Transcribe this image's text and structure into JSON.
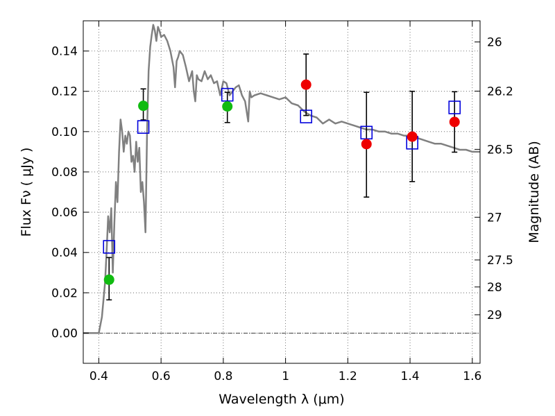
{
  "chart_data": {
    "type": "scatter",
    "xlabel": "Wavelength  λ (μm)",
    "ylabel": "Flux  Fν  ( μJy )",
    "right_ylabel": "Magnitude (AB)",
    "xlim": [
      0.35,
      1.625
    ],
    "ylim": [
      -0.015,
      0.155
    ],
    "grid": true,
    "x_ticks": [
      {
        "value": 0.4,
        "label": "0.4"
      },
      {
        "value": 0.6,
        "label": "0.6"
      },
      {
        "value": 0.8,
        "label": "0.8"
      },
      {
        "value": 1.0,
        "label": "1"
      },
      {
        "value": 1.2,
        "label": "1.2"
      },
      {
        "value": 1.4,
        "label": "1.4"
      },
      {
        "value": 1.6,
        "label": "1.6"
      }
    ],
    "y_ticks": [
      {
        "value": 0.0,
        "label": "0.00"
      },
      {
        "value": 0.02,
        "label": "0.02"
      },
      {
        "value": 0.04,
        "label": "0.04"
      },
      {
        "value": 0.06,
        "label": "0.06"
      },
      {
        "value": 0.08,
        "label": "0.08"
      },
      {
        "value": 0.1,
        "label": "0.10"
      },
      {
        "value": 0.12,
        "label": "0.12"
      },
      {
        "value": 0.14,
        "label": "0.14"
      }
    ],
    "right_ticks": [
      {
        "flux": 0.1445,
        "label": "26"
      },
      {
        "flux": 0.1201,
        "label": "26.2"
      },
      {
        "flux": 0.0912,
        "label": "26.5"
      },
      {
        "flux": 0.0575,
        "label": "27"
      },
      {
        "flux": 0.0363,
        "label": "27.5"
      },
      {
        "flux": 0.0229,
        "label": "28"
      },
      {
        "flux": 0.0091,
        "label": "29"
      }
    ],
    "colors": {
      "model": "#808080",
      "green": "#11bb11",
      "red": "#ee0000",
      "box": "#0000dd",
      "errorbar": "#000000"
    },
    "model_spectrum": [
      [
        0.35,
        0.0
      ],
      [
        0.4,
        0.0
      ],
      [
        0.41,
        0.008
      ],
      [
        0.42,
        0.025
      ],
      [
        0.425,
        0.04
      ],
      [
        0.43,
        0.058
      ],
      [
        0.435,
        0.05
      ],
      [
        0.44,
        0.062
      ],
      [
        0.445,
        0.03
      ],
      [
        0.45,
        0.055
      ],
      [
        0.455,
        0.075
      ],
      [
        0.46,
        0.065
      ],
      [
        0.465,
        0.09
      ],
      [
        0.47,
        0.106
      ],
      [
        0.475,
        0.1
      ],
      [
        0.48,
        0.09
      ],
      [
        0.485,
        0.098
      ],
      [
        0.49,
        0.094
      ],
      [
        0.495,
        0.1
      ],
      [
        0.5,
        0.098
      ],
      [
        0.505,
        0.085
      ],
      [
        0.51,
        0.088
      ],
      [
        0.515,
        0.08
      ],
      [
        0.52,
        0.095
      ],
      [
        0.525,
        0.085
      ],
      [
        0.53,
        0.092
      ],
      [
        0.535,
        0.07
      ],
      [
        0.54,
        0.075
      ],
      [
        0.545,
        0.065
      ],
      [
        0.55,
        0.05
      ],
      [
        0.555,
        0.1
      ],
      [
        0.56,
        0.13
      ],
      [
        0.565,
        0.142
      ],
      [
        0.57,
        0.148
      ],
      [
        0.575,
        0.153
      ],
      [
        0.58,
        0.15
      ],
      [
        0.585,
        0.145
      ],
      [
        0.59,
        0.152
      ],
      [
        0.595,
        0.15
      ],
      [
        0.6,
        0.147
      ],
      [
        0.61,
        0.148
      ],
      [
        0.62,
        0.145
      ],
      [
        0.63,
        0.14
      ],
      [
        0.64,
        0.132
      ],
      [
        0.645,
        0.122
      ],
      [
        0.65,
        0.135
      ],
      [
        0.655,
        0.137
      ],
      [
        0.66,
        0.14
      ],
      [
        0.67,
        0.138
      ],
      [
        0.68,
        0.132
      ],
      [
        0.69,
        0.125
      ],
      [
        0.7,
        0.13
      ],
      [
        0.705,
        0.12
      ],
      [
        0.71,
        0.115
      ],
      [
        0.715,
        0.128
      ],
      [
        0.72,
        0.126
      ],
      [
        0.73,
        0.125
      ],
      [
        0.74,
        0.13
      ],
      [
        0.75,
        0.126
      ],
      [
        0.76,
        0.128
      ],
      [
        0.77,
        0.124
      ],
      [
        0.78,
        0.125
      ],
      [
        0.79,
        0.118
      ],
      [
        0.8,
        0.125
      ],
      [
        0.81,
        0.124
      ],
      [
        0.82,
        0.118
      ],
      [
        0.83,
        0.12
      ],
      [
        0.84,
        0.122
      ],
      [
        0.85,
        0.123
      ],
      [
        0.86,
        0.118
      ],
      [
        0.87,
        0.115
      ],
      [
        0.88,
        0.105
      ],
      [
        0.885,
        0.12
      ],
      [
        0.89,
        0.117
      ],
      [
        0.9,
        0.118
      ],
      [
        0.92,
        0.119
      ],
      [
        0.94,
        0.118
      ],
      [
        0.96,
        0.117
      ],
      [
        0.98,
        0.116
      ],
      [
        1.0,
        0.117
      ],
      [
        1.02,
        0.114
      ],
      [
        1.04,
        0.113
      ],
      [
        1.06,
        0.11
      ],
      [
        1.08,
        0.108
      ],
      [
        1.1,
        0.107
      ],
      [
        1.12,
        0.104
      ],
      [
        1.14,
        0.106
      ],
      [
        1.16,
        0.104
      ],
      [
        1.18,
        0.105
      ],
      [
        1.2,
        0.104
      ],
      [
        1.22,
        0.103
      ],
      [
        1.24,
        0.102
      ],
      [
        1.26,
        0.101
      ],
      [
        1.28,
        0.101
      ],
      [
        1.3,
        0.1
      ],
      [
        1.32,
        0.1
      ],
      [
        1.34,
        0.099
      ],
      [
        1.36,
        0.099
      ],
      [
        1.38,
        0.098
      ],
      [
        1.4,
        0.098
      ],
      [
        1.42,
        0.097
      ],
      [
        1.44,
        0.096
      ],
      [
        1.46,
        0.095
      ],
      [
        1.48,
        0.094
      ],
      [
        1.5,
        0.094
      ],
      [
        1.52,
        0.093
      ],
      [
        1.54,
        0.092
      ],
      [
        1.56,
        0.091
      ],
      [
        1.58,
        0.091
      ],
      [
        1.6,
        0.09
      ],
      [
        1.625,
        0.09
      ]
    ],
    "green_points": [
      {
        "x": 0.433,
        "y": 0.0265,
        "yerr": [
          0.0165,
          0.0375
        ]
      },
      {
        "x": 0.543,
        "y": 0.1128,
        "yerr": [
          0.1058,
          0.1212
        ]
      },
      {
        "x": 0.813,
        "y": 0.1125,
        "yerr": [
          0.1045,
          0.1195
        ]
      }
    ],
    "red_points": [
      {
        "x": 1.066,
        "y": 0.1233,
        "yerr": [
          0.108,
          0.1385
        ]
      },
      {
        "x": 1.26,
        "y": 0.0938,
        "yerr": [
          0.0675,
          0.1195
        ]
      },
      {
        "x": 1.407,
        "y": 0.0975,
        "yerr": [
          0.0752,
          0.12
        ]
      },
      {
        "x": 1.543,
        "y": 0.1048,
        "yerr": [
          0.0898,
          0.1198
        ]
      }
    ],
    "model_boxes": [
      {
        "x": 0.433,
        "y": 0.0428
      },
      {
        "x": 0.543,
        "y": 0.1023
      },
      {
        "x": 0.813,
        "y": 0.1183
      },
      {
        "x": 1.066,
        "y": 0.1075
      },
      {
        "x": 1.26,
        "y": 0.0995
      },
      {
        "x": 1.407,
        "y": 0.0945
      },
      {
        "x": 1.543,
        "y": 0.112
      }
    ]
  }
}
